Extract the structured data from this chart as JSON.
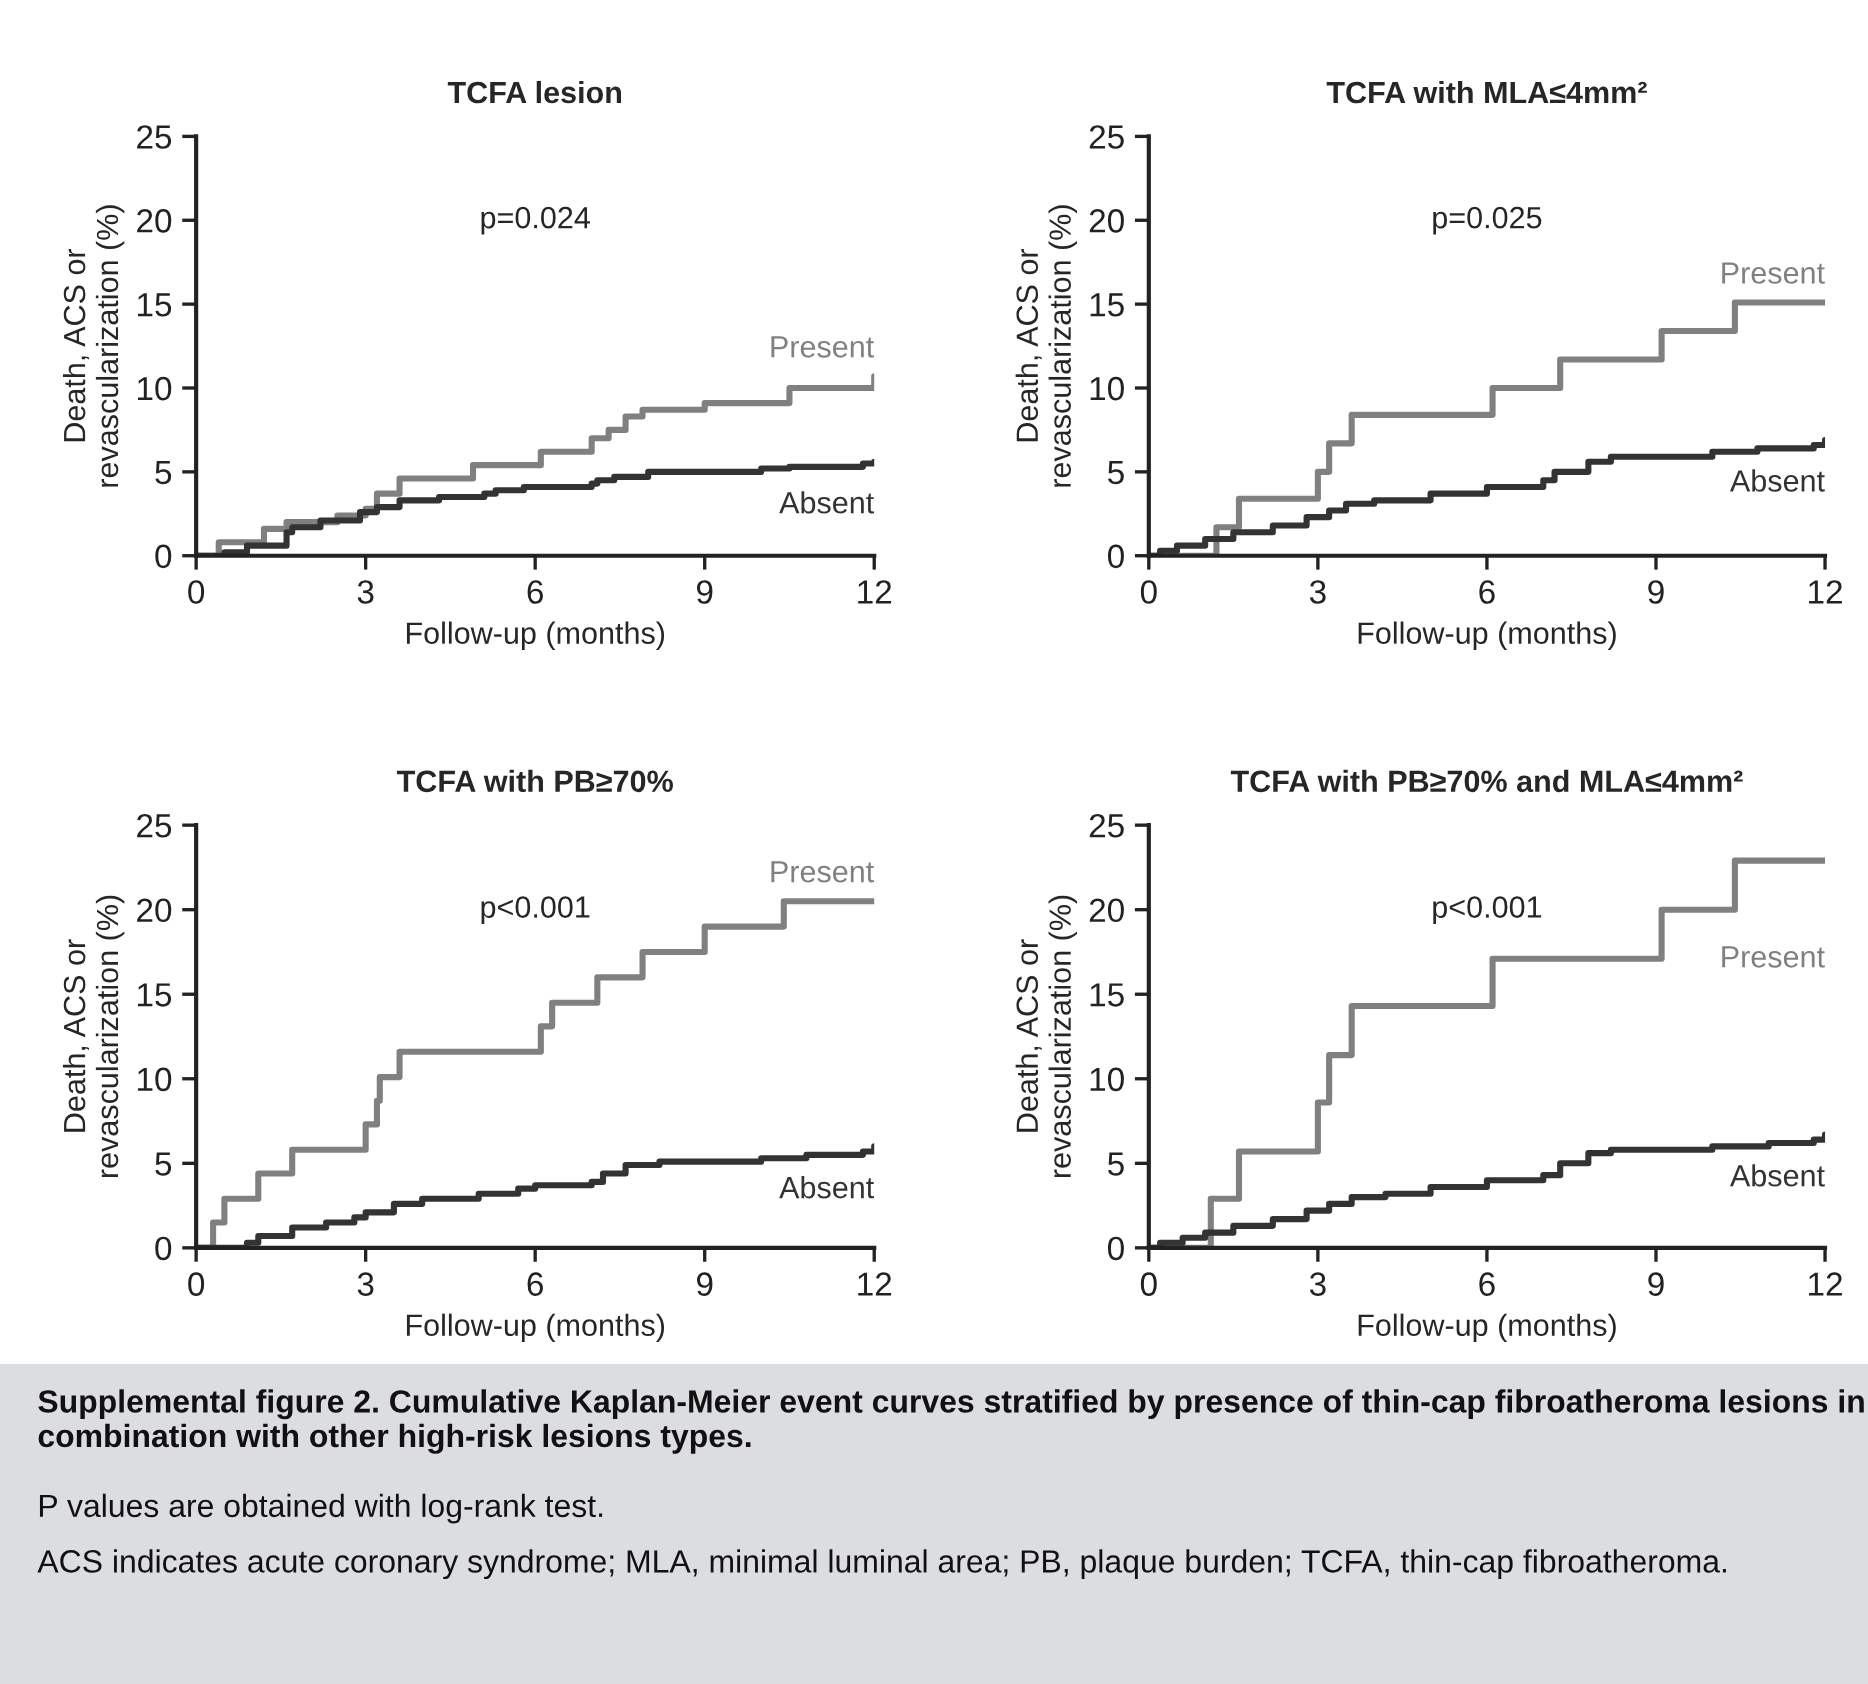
{
  "chart_data": [
    {
      "type": "step",
      "title": "TCFA lesion",
      "xlabel": "Follow-up (months)",
      "ylabel": "Death, ACS or\nrevascularization (%)",
      "xlim": [
        0,
        12
      ],
      "xticks": [
        0,
        3,
        6,
        9,
        12
      ],
      "ylim": [
        0,
        25
      ],
      "yticks": [
        0,
        5,
        10,
        15,
        20,
        25
      ],
      "annotations": [
        "p=0.024"
      ],
      "series": [
        {
          "name": "Present",
          "color": "#808080",
          "x": [
            0,
            0.4,
            1.2,
            1.6,
            2.5,
            3.0,
            3.2,
            3.6,
            4.9,
            6.1,
            7.0,
            7.3,
            7.6,
            7.9,
            9.0,
            10.5,
            12.0
          ],
          "values": [
            0,
            0.8,
            1.6,
            2.0,
            2.4,
            2.8,
            3.7,
            4.6,
            5.4,
            6.2,
            7.0,
            7.5,
            8.3,
            8.7,
            9.1,
            10.0,
            10.7
          ]
        },
        {
          "name": "Absent",
          "color": "#333333",
          "x": [
            0,
            0.5,
            0.9,
            1.6,
            1.7,
            2.2,
            2.9,
            3.2,
            3.6,
            4.3,
            5.1,
            5.3,
            5.8,
            7.0,
            7.1,
            7.4,
            8.0,
            10.0,
            10.5,
            11.8,
            12.0
          ],
          "values": [
            0,
            0.2,
            0.6,
            1.4,
            1.7,
            2.1,
            2.6,
            2.9,
            3.3,
            3.5,
            3.7,
            3.9,
            4.1,
            4.3,
            4.5,
            4.7,
            5.0,
            5.2,
            5.3,
            5.5,
            5.6
          ]
        }
      ]
    },
    {
      "type": "step",
      "title": "TCFA with MLA≤4mm²",
      "xlabel": "Follow-up (months)",
      "ylabel": "Death, ACS or\nrevascularization (%)",
      "xlim": [
        0,
        12
      ],
      "xticks": [
        0,
        3,
        6,
        9,
        12
      ],
      "ylim": [
        0,
        25
      ],
      "yticks": [
        0,
        5,
        10,
        15,
        20,
        25
      ],
      "annotations": [
        "p=0.025"
      ],
      "series": [
        {
          "name": "Present",
          "color": "#808080",
          "x": [
            0,
            1.2,
            1.6,
            3.0,
            3.2,
            3.6,
            6.1,
            7.3,
            9.1,
            10.4,
            12.0
          ],
          "values": [
            0,
            1.7,
            3.4,
            5.0,
            6.7,
            8.4,
            10.0,
            11.7,
            13.4,
            15.1,
            15.1
          ]
        },
        {
          "name": "Absent",
          "color": "#333333",
          "x": [
            0,
            0.2,
            0.5,
            1.0,
            1.5,
            2.2,
            2.8,
            3.2,
            3.5,
            4.0,
            5.0,
            6.0,
            7.0,
            7.2,
            7.8,
            8.2,
            10.0,
            10.8,
            11.8,
            12.0
          ],
          "values": [
            0,
            0.3,
            0.6,
            1.0,
            1.4,
            1.8,
            2.3,
            2.7,
            3.1,
            3.3,
            3.7,
            4.1,
            4.5,
            5.0,
            5.6,
            5.9,
            6.2,
            6.4,
            6.6,
            6.9
          ]
        }
      ]
    },
    {
      "type": "step",
      "title": "TCFA with PB≥70%",
      "xlabel": "Follow-up (months)",
      "ylabel": "Death, ACS or\nrevascularization (%)",
      "xlim": [
        0,
        12
      ],
      "xticks": [
        0,
        3,
        6,
        9,
        12
      ],
      "ylim": [
        0,
        25
      ],
      "yticks": [
        0,
        5,
        10,
        15,
        20,
        25
      ],
      "annotations": [
        "p<0.001"
      ],
      "series": [
        {
          "name": "Present",
          "color": "#808080",
          "x": [
            0,
            0.3,
            0.5,
            1.1,
            1.7,
            3.0,
            3.2,
            3.25,
            3.6,
            6.1,
            6.3,
            7.1,
            7.9,
            9.0,
            10.4,
            12.0
          ],
          "values": [
            0,
            1.5,
            2.9,
            4.4,
            5.8,
            7.3,
            8.7,
            10.1,
            11.6,
            13.1,
            14.5,
            16.0,
            17.5,
            19.0,
            20.5,
            20.5
          ]
        },
        {
          "name": "Absent",
          "color": "#333333",
          "x": [
            0,
            0.9,
            1.1,
            1.7,
            2.3,
            2.8,
            3.0,
            3.5,
            4.0,
            5.0,
            5.7,
            6.0,
            7.0,
            7.2,
            7.6,
            8.2,
            10.0,
            10.8,
            11.8,
            12.0
          ],
          "values": [
            0,
            0.3,
            0.7,
            1.2,
            1.5,
            1.8,
            2.1,
            2.6,
            2.9,
            3.2,
            3.5,
            3.7,
            3.9,
            4.4,
            4.9,
            5.1,
            5.3,
            5.5,
            5.7,
            6.0
          ]
        }
      ]
    },
    {
      "type": "step",
      "title": "TCFA with PB≥70% and MLA≤4mm²",
      "xlabel": "Follow-up (months)",
      "ylabel": "Death, ACS or\nrevascularization (%)",
      "xlim": [
        0,
        12
      ],
      "xticks": [
        0,
        3,
        6,
        9,
        12
      ],
      "ylim": [
        0,
        25
      ],
      "yticks": [
        0,
        5,
        10,
        15,
        20,
        25
      ],
      "annotations": [
        "p<0.001",
        "Supplemental figure 2. Cumulative Kaplan-Meier event curves stratified by presence of thin-cap fibroatheroma lesions in combination with other high-risk lesions types.",
        "P values are obtained with log-rank test.",
        "ACS indicates acute coronary syndrome; MLA, minimal luminal area; PB, plaque burden; TCFA, thin-cap fibroatheroma."
      ],
      "series": [
        {
          "name": "Present",
          "color": "#808080",
          "x": [
            0,
            1.1,
            1.6,
            3.0,
            3.2,
            3.6,
            6.1,
            9.1,
            10.4,
            12.0
          ],
          "values": [
            0,
            2.9,
            5.7,
            8.6,
            11.4,
            14.3,
            17.1,
            20.0,
            22.9,
            22.9
          ]
        },
        {
          "name": "Absent",
          "color": "#333333",
          "x": [
            0,
            0.2,
            0.6,
            1.0,
            1.5,
            2.2,
            2.8,
            3.2,
            3.6,
            4.2,
            5.0,
            6.0,
            7.0,
            7.3,
            7.8,
            8.2,
            10.0,
            11.0,
            11.8,
            12.0
          ],
          "values": [
            0,
            0.3,
            0.6,
            0.9,
            1.3,
            1.7,
            2.2,
            2.6,
            3.0,
            3.2,
            3.6,
            4.0,
            4.3,
            5.0,
            5.6,
            5.8,
            6.0,
            6.2,
            6.4,
            6.7
          ]
        }
      ]
    }
  ]
}
